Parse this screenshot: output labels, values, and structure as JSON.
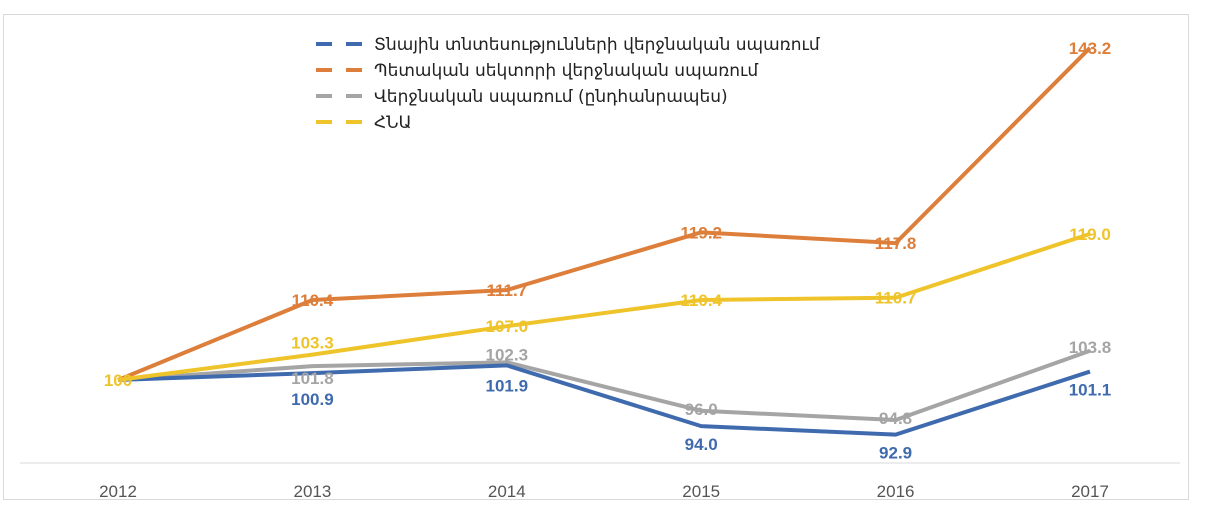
{
  "chart_data": {
    "type": "line",
    "title": "",
    "xlabel": "",
    "ylabel": "",
    "categories": [
      "2012",
      "2013",
      "2014",
      "2015",
      "2016",
      "2017"
    ],
    "series": [
      {
        "name": "Տնային տնտեսությունների վերջնական սպառում",
        "color": "#3F6BAE",
        "values": [
          100,
          100.9,
          101.9,
          94.0,
          92.9,
          101.1
        ],
        "labels": [
          "",
          "100.9",
          "101.9",
          "94.0",
          "92.9",
          "101.1"
        ]
      },
      {
        "name": "Պետական սեկտորի վերջնական սպառում",
        "color": "#DD7E3A",
        "values": [
          100,
          110.4,
          111.7,
          119.2,
          117.8,
          143.2
        ],
        "labels": [
          "",
          "110.4",
          "111.7",
          "119.2",
          "117.8",
          "143.2"
        ]
      },
      {
        "name": "Վերջնական սպառում (ընդհանրապես)",
        "color": "#A5A5A5",
        "values": [
          100,
          101.8,
          102.3,
          96.0,
          94.8,
          103.8
        ],
        "labels": [
          "",
          "101.8",
          "102.3",
          "96.0",
          "94.8",
          "103.8"
        ]
      },
      {
        "name": "ՀՆԱ",
        "color": "#EFC32A",
        "values": [
          100,
          103.3,
          107.0,
          110.4,
          110.7,
          119.0
        ],
        "labels": [
          "100",
          "103.3",
          "107.0",
          "110.4",
          "110.7",
          "119.0"
        ]
      }
    ],
    "ylim": [
      89.2,
      147
    ],
    "grid": false,
    "legend_position": "top-center"
  }
}
